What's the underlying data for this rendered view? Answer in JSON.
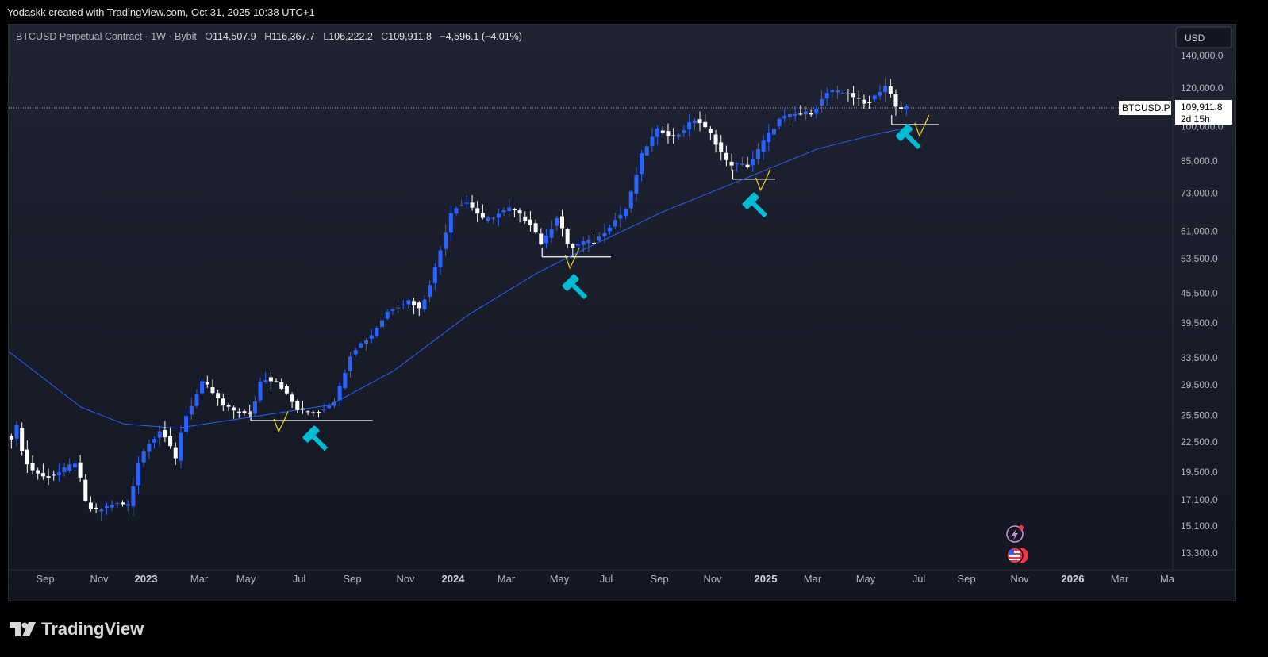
{
  "header": {
    "attribution": "Yodaskk created with TradingView.com, Oct 31, 2025 10:38 UTC+1"
  },
  "legend": {
    "symbol": "BTCUSD Perpetual Contract · 1W · Bybit",
    "o_label": "O",
    "o": "114,507.9",
    "h_label": "H",
    "h": "116,367.7",
    "l_label": "L",
    "l": "106,222.2",
    "c_label": "C",
    "c": "109,911.8",
    "change": "−4,596.1 (−4.01%)"
  },
  "currency_button": "USD",
  "price_tag": {
    "symbol": "BTCUSD.P",
    "price": "109,911.8",
    "countdown": "2d 15h"
  },
  "footer": {
    "logo_text": "TradingView"
  },
  "colors": {
    "bull": "#2962ff",
    "bear": "#ffffff",
    "ma": "#2962ff",
    "hammer": "#00bcd4",
    "yellow": "#f5d90a",
    "background": "#131722"
  },
  "chart_data": {
    "type": "candlestick",
    "scale": "log",
    "title": "BTCUSD Perpetual Contract · 1W · Bybit",
    "timeframe": "1W",
    "y_ticks": [
      "140,000.0",
      "120,000.0",
      "100,000.0",
      "85,000.0",
      "73,000.0",
      "61,000.0",
      "53,500.0",
      "45,500.0",
      "39,500.0",
      "33,500.0",
      "29,500.0",
      "25,500.0",
      "22,500.0",
      "19,500.0",
      "17,100.0",
      "15,100.0",
      "13,300.0"
    ],
    "y_tick_values": [
      140000,
      120000,
      100000,
      85000,
      73000,
      61000,
      53500,
      45500,
      39500,
      33500,
      29500,
      25500,
      22500,
      19500,
      17100,
      15100,
      13300
    ],
    "x_ticks": [
      "Sep",
      "Nov",
      "2023",
      "Mar",
      "May",
      "Jul",
      "Sep",
      "Nov",
      "2024",
      "Mar",
      "May",
      "Jul",
      "Sep",
      "Nov",
      "2025",
      "Mar",
      "May",
      "Jul",
      "Sep",
      "Nov",
      "2026",
      "Mar",
      "Ma"
    ],
    "x_tick_bold": [
      false,
      false,
      true,
      false,
      false,
      false,
      false,
      false,
      true,
      false,
      false,
      false,
      false,
      false,
      true,
      false,
      false,
      false,
      false,
      false,
      true,
      false,
      false
    ],
    "path": [
      [
        "2022-08-01",
        23000
      ],
      [
        "2022-08-08",
        24500
      ],
      [
        "2022-08-15",
        21000
      ],
      [
        "2022-08-22",
        20000
      ],
      [
        "2022-09-12",
        19000
      ],
      [
        "2022-10-03",
        19500
      ],
      [
        "2022-10-24",
        20500
      ],
      [
        "2022-11-07",
        16500
      ],
      [
        "2022-11-21",
        16200
      ],
      [
        "2022-12-12",
        16800
      ],
      [
        "2023-01-02",
        16700
      ],
      [
        "2023-01-16",
        21000
      ],
      [
        "2023-02-13",
        24000
      ],
      [
        "2023-03-06",
        20500
      ],
      [
        "2023-03-13",
        24500
      ],
      [
        "2023-04-10",
        30000
      ],
      [
        "2023-05-08",
        26500
      ],
      [
        "2023-06-12",
        25500
      ],
      [
        "2023-06-26",
        30500
      ],
      [
        "2023-07-17",
        30000
      ],
      [
        "2023-08-14",
        26000
      ],
      [
        "2023-09-11",
        26000
      ],
      [
        "2023-10-02",
        27500
      ],
      [
        "2023-10-23",
        34500
      ],
      [
        "2023-11-20",
        37500
      ],
      [
        "2023-12-11",
        42000
      ],
      [
        "2024-01-08",
        44000
      ],
      [
        "2024-01-22",
        42000
      ],
      [
        "2024-02-12",
        52000
      ],
      [
        "2024-03-04",
        68000
      ],
      [
        "2024-03-25",
        70000
      ],
      [
        "2024-04-15",
        64000
      ],
      [
        "2024-05-20",
        68000
      ],
      [
        "2024-06-17",
        63000
      ],
      [
        "2024-07-01",
        57000
      ],
      [
        "2024-07-22",
        66000
      ],
      [
        "2024-08-05",
        56000
      ],
      [
        "2024-08-26",
        58000
      ],
      [
        "2024-09-09",
        58000
      ],
      [
        "2024-09-30",
        63000
      ],
      [
        "2024-10-21",
        68000
      ],
      [
        "2024-11-11",
        89000
      ],
      [
        "2024-12-02",
        99000
      ],
      [
        "2024-12-23",
        95000
      ],
      [
        "2025-01-20",
        104000
      ],
      [
        "2025-02-10",
        96000
      ],
      [
        "2025-03-03",
        84000
      ],
      [
        "2025-03-31",
        83000
      ],
      [
        "2025-04-21",
        94000
      ],
      [
        "2025-05-12",
        104000
      ],
      [
        "2025-06-02",
        106000
      ],
      [
        "2025-06-23",
        107000
      ],
      [
        "2025-07-14",
        118000
      ],
      [
        "2025-08-11",
        117000
      ],
      [
        "2025-09-01",
        111000
      ],
      [
        "2025-09-29",
        122000
      ],
      [
        "2025-10-13",
        108000
      ],
      [
        "2025-10-27",
        109911.8
      ]
    ],
    "ma_path": [
      [
        "2022-06-20",
        34500
      ],
      [
        "2022-10-31",
        26500
      ],
      [
        "2022-12-26",
        24500
      ],
      [
        "2023-03-06",
        24000
      ],
      [
        "2023-06-26",
        25500
      ],
      [
        "2023-09-25",
        26800
      ],
      [
        "2023-12-18",
        31500
      ],
      [
        "2024-03-25",
        41000
      ],
      [
        "2024-06-24",
        50000
      ],
      [
        "2024-08-26",
        56000
      ],
      [
        "2024-12-09",
        67000
      ],
      [
        "2025-03-24",
        78000
      ],
      [
        "2025-06-30",
        90000
      ],
      [
        "2025-09-22",
        97000
      ],
      [
        "2025-10-27",
        99500
      ]
    ],
    "support_levels": [
      {
        "from": "2023-06-12",
        "to": "2023-11-20",
        "price": 24900
      },
      {
        "from": "2024-07-01",
        "to": "2024-09-30",
        "price": 54000
      },
      {
        "from": "2025-03-10",
        "to": "2025-05-05",
        "price": 78000
      },
      {
        "from": "2025-10-06",
        "to": "2025-12-08",
        "price": 101000
      }
    ],
    "hammer_markers": [
      "2023-09-11",
      "2024-08-19",
      "2025-04-14",
      "2025-11-03"
    ],
    "last_price": 109911.8,
    "grid": false
  }
}
